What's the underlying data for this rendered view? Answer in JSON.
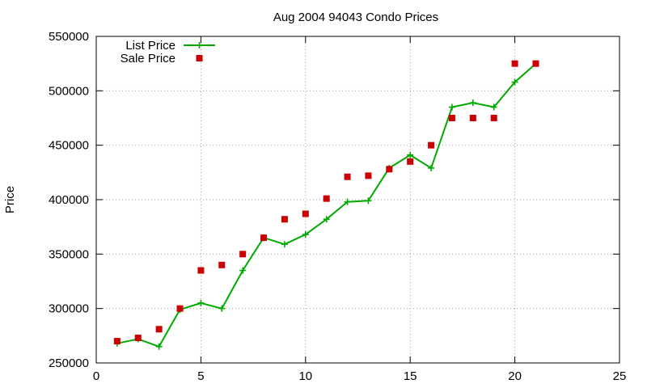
{
  "chart_data": {
    "type": "line",
    "title": "Aug 2004 94043 Condo Prices",
    "xlabel": "",
    "ylabel": "Price",
    "xlim": [
      0,
      25
    ],
    "ylim": [
      250000,
      550000
    ],
    "xticks": [
      0,
      5,
      10,
      15,
      20,
      25
    ],
    "yticks": [
      250000,
      300000,
      350000,
      400000,
      450000,
      500000,
      550000
    ],
    "grid": true,
    "legend_position": "top-left",
    "series": [
      {
        "name": "List Price",
        "style": "linespoints",
        "color": "#00aa00",
        "x": [
          1,
          2,
          3,
          4,
          5,
          6,
          7,
          8,
          9,
          10,
          11,
          12,
          13,
          14,
          15,
          16,
          17,
          18,
          19,
          20,
          21
        ],
        "y": [
          268000,
          272000,
          265000,
          299000,
          305000,
          300000,
          335000,
          365000,
          359000,
          368000,
          382000,
          398000,
          399000,
          429000,
          441000,
          429000,
          485000,
          489000,
          485000,
          508000,
          525000
        ]
      },
      {
        "name": "Sale Price",
        "style": "points",
        "color": "#cc0000",
        "x": [
          1,
          2,
          3,
          4,
          5,
          6,
          7,
          8,
          9,
          10,
          11,
          12,
          13,
          14,
          15,
          16,
          17,
          18,
          19,
          20,
          21
        ],
        "y": [
          270000,
          273000,
          281000,
          300000,
          335000,
          340000,
          350000,
          365000,
          382000,
          387000,
          401000,
          421000,
          422000,
          428000,
          435000,
          450000,
          475000,
          475000,
          475000,
          525000,
          525000
        ]
      }
    ]
  }
}
